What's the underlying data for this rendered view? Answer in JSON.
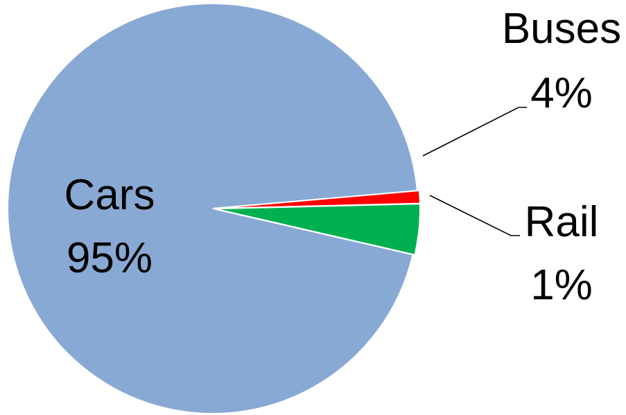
{
  "chart_data": {
    "type": "pie",
    "title": "",
    "slices": [
      {
        "name": "Cars",
        "value": 95,
        "label": "95%",
        "color": "#88a9d3"
      },
      {
        "name": "Buses",
        "value": 4,
        "label": "4%",
        "color": "#00b050"
      },
      {
        "name": "Rail",
        "value": 1,
        "label": "1%",
        "color": "#ff0000"
      }
    ],
    "exploded_slices": [
      "Buses",
      "Rail"
    ],
    "start_angle_deg": -5,
    "direction": "counterclockwise",
    "legend": "none"
  }
}
